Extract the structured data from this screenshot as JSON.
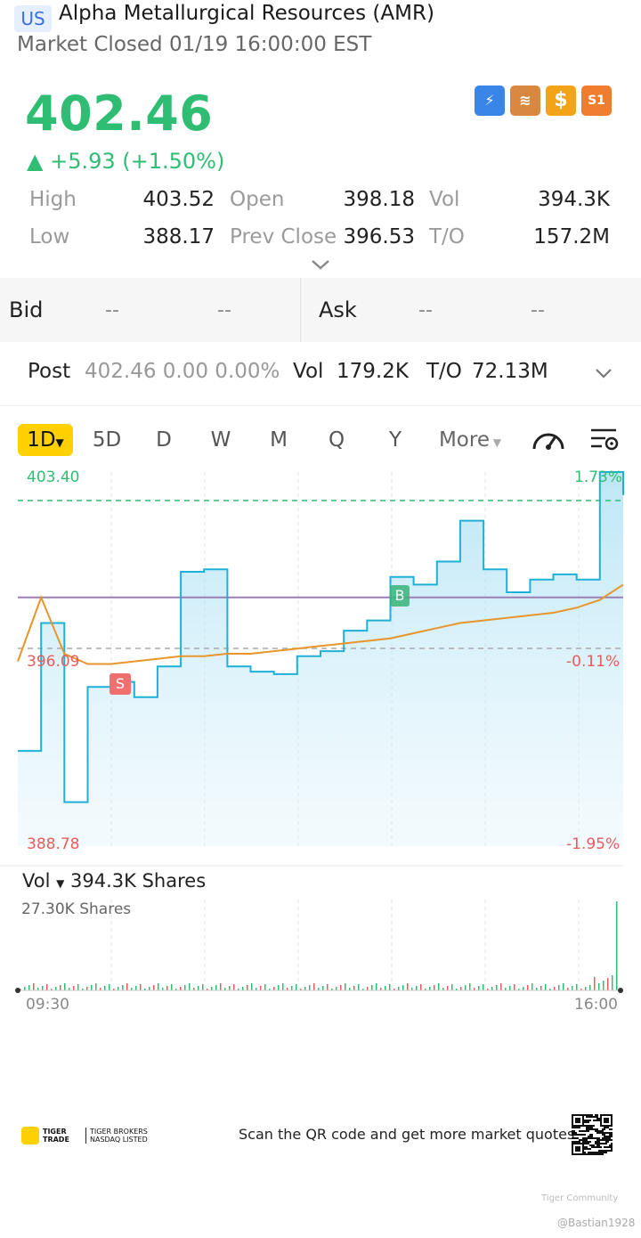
{
  "header": {
    "market_badge": "US",
    "title": "Alpha Metallurgical Resources (AMR)",
    "status": "Market Closed 01/19 16:00:00 EST"
  },
  "quote": {
    "price": "402.46",
    "change": "▲ +5.93 (+1.50%)",
    "color_up": "#2fbd74",
    "feature_icons": [
      "lightning-level1-icon",
      "stack-a-icon",
      "dollar-icon",
      "s1-icon"
    ],
    "stats": [
      {
        "label": "High",
        "value": "403.52"
      },
      {
        "label": "Open",
        "value": "398.18"
      },
      {
        "label": "Vol",
        "value": "394.3K"
      },
      {
        "label": "Low",
        "value": "388.17"
      },
      {
        "label": "Prev Close",
        "value": "396.53"
      },
      {
        "label": "T/O",
        "value": "157.2M"
      }
    ]
  },
  "bidask": {
    "bid_label": "Bid",
    "bid_price": "--",
    "bid_size": "--",
    "ask_label": "Ask",
    "ask_price": "--",
    "ask_size": "--"
  },
  "post": {
    "label": "Post",
    "price_change": "402.46 0.00 0.00%",
    "vol_label": "Vol",
    "vol_value": "179.2K",
    "to_label": "T/O",
    "to_value": "72.13M"
  },
  "tabs": [
    "1D",
    "5D",
    "D",
    "W",
    "M",
    "Q",
    "Y",
    "More"
  ],
  "active_tab": "1D",
  "chart": {
    "price_high": "403.40",
    "price_mid": "396.09",
    "price_low": "388.78",
    "pct_high": "1.73%",
    "pct_mid": "-0.11%",
    "pct_low": "-1.95%",
    "marker_s": "S",
    "marker_b": "B",
    "vol_selector": "Vol",
    "vol_total": "394.3K Shares",
    "vol_max": "27.30K Shares",
    "time_start": "09:30",
    "time_end": "16:00",
    "line_color": "#1fb0d8",
    "avg_color": "#e8952c",
    "prev_close_color": "#9b7fb5"
  },
  "chart_data": {
    "type": "line",
    "x": [
      "09:30",
      "09:45",
      "10:00",
      "10:15",
      "10:30",
      "10:45",
      "11:00",
      "11:15",
      "11:30",
      "11:45",
      "12:00",
      "12:15",
      "12:30",
      "12:45",
      "13:00",
      "13:15",
      "13:30",
      "13:45",
      "14:00",
      "14:15",
      "14:30",
      "14:45",
      "15:00",
      "15:15",
      "15:30",
      "15:45",
      "16:00"
    ],
    "series": [
      {
        "values": [
          392.5,
          397.5,
          390.5,
          395.0,
          395.2,
          394.6,
          395.8,
          399.5,
          399.6,
          395.8,
          395.6,
          395.5,
          396.2,
          396.4,
          397.2,
          397.6,
          399.3,
          399.0,
          399.9,
          401.5,
          399.6,
          398.7,
          399.2,
          399.4,
          399.2,
          403.4,
          402.5
        ]
      },
      {
        "values": [
          396.0,
          398.5,
          396.3,
          395.9,
          395.9,
          396.0,
          396.1,
          396.2,
          396.2,
          396.3,
          396.3,
          396.4,
          396.5,
          396.6,
          396.7,
          396.8,
          396.9,
          397.1,
          397.3,
          397.5,
          397.6,
          397.7,
          397.8,
          397.9,
          398.1,
          398.4,
          399.0
        ]
      }
    ],
    "ylim": [
      388.78,
      403.4
    ],
    "reference_line": 398.5,
    "secondary_axis_pct": [
      1.73,
      -0.11,
      -1.95
    ],
    "volume_max": 27.3,
    "volume_unit": "K Shares"
  },
  "footer": {
    "logo_text1": "TIGER TRADE",
    "logo_text2": "TIGER BROKERS NASDAQ LISTED",
    "scan_text": "Scan the QR code and get more market quotes",
    "watermark_community": "Tiger Community",
    "watermark_user": "@Bastian1928"
  }
}
